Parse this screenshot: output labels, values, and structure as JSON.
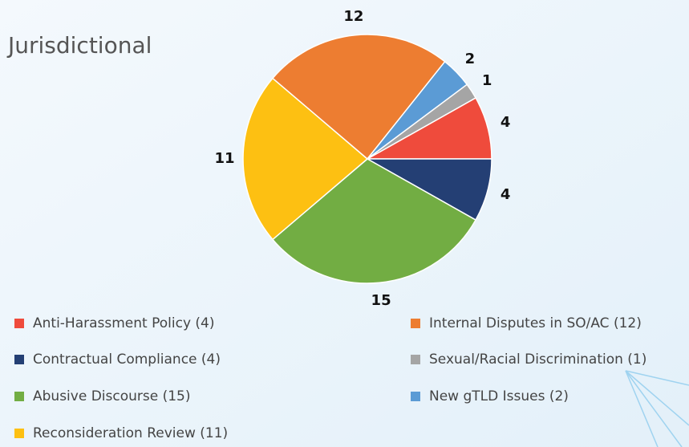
{
  "chart_data": {
    "type": "pie",
    "title": "Jurisdictional",
    "categories": [
      "Anti-Harassment Policy (4)",
      "Contractual Compliance (4)",
      "Abusive Discourse (15)",
      "Reconsideration Review (11)",
      "Internal Disputes in SO/AC (12)",
      "New gTLD Issues (2)",
      "Sexual/Racial Discrimination (1)"
    ],
    "values": [
      4,
      4,
      15,
      11,
      12,
      2,
      1
    ],
    "colors": [
      "#ef4b3c",
      "#243f74",
      "#72ad43",
      "#fdc012",
      "#ed7d31",
      "#5b9bd5",
      "#a5a5a5"
    ]
  }
}
